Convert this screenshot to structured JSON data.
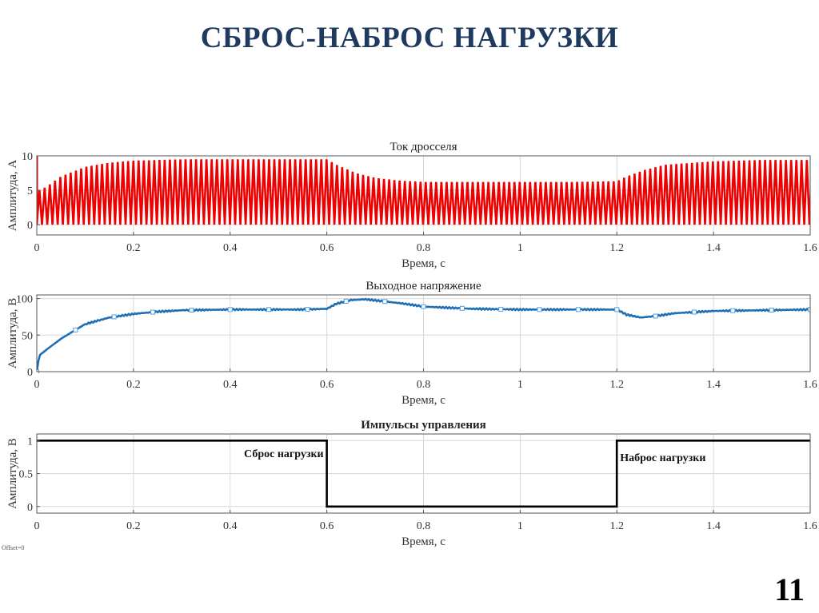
{
  "slide": {
    "title": "СБРОС-НАБРОС НАГРУЗКИ",
    "page_number": "11",
    "offset_note": "Offset=0"
  },
  "chart_data": [
    {
      "type": "line",
      "title": "Ток дросселя",
      "xlabel": "Время, с",
      "ylabel": "Амплитуда, А",
      "xlim": [
        0,
        1.6
      ],
      "ylim": [
        -1.5,
        10
      ],
      "xticks": [
        0,
        0.2,
        0.4,
        0.6,
        0.8,
        1,
        1.2,
        1.4,
        1.6
      ],
      "yticks": [
        0,
        5,
        10
      ],
      "grid": true,
      "color": "#ee0000",
      "series": [
        {
          "style": "ripple",
          "ripple_min": 0,
          "x": [
            0,
            0.004,
            0.02,
            0.05,
            0.1,
            0.15,
            0.2,
            0.3,
            0.4,
            0.5,
            0.6,
            0.62,
            0.66,
            0.7,
            0.75,
            0.8,
            0.9,
            1.0,
            1.1,
            1.2,
            1.22,
            1.26,
            1.3,
            1.4,
            1.5,
            1.6
          ],
          "y": [
            10,
            5,
            5.5,
            7,
            8.4,
            9,
            9.3,
            9.5,
            9.5,
            9.5,
            9.5,
            8.7,
            7.5,
            6.8,
            6.4,
            6.2,
            6.2,
            6.2,
            6.2,
            6.3,
            7,
            8,
            8.7,
            9.2,
            9.4,
            9.4
          ]
        }
      ]
    },
    {
      "type": "line",
      "title": "Выходное напряжение",
      "xlabel": "Время, с",
      "ylabel": "Амплитуда, В",
      "xlim": [
        0,
        1.6
      ],
      "ylim": [
        0,
        105
      ],
      "xticks": [
        0,
        0.2,
        0.4,
        0.6,
        0.8,
        1,
        1.2,
        1.4,
        1.6
      ],
      "yticks": [
        0,
        50,
        100
      ],
      "grid": true,
      "color": "#1f6fb5",
      "series": [
        {
          "style": "line-markers",
          "x": [
            0,
            0.005,
            0.02,
            0.05,
            0.1,
            0.15,
            0.2,
            0.25,
            0.3,
            0.4,
            0.5,
            0.55,
            0.6,
            0.62,
            0.65,
            0.68,
            0.72,
            0.76,
            0.8,
            0.9,
            1.0,
            1.1,
            1.2,
            1.22,
            1.25,
            1.28,
            1.32,
            1.4,
            1.5,
            1.6
          ],
          "y": [
            0,
            22,
            30,
            45,
            65,
            74,
            79,
            82,
            84,
            85,
            85,
            85,
            86,
            93,
            98,
            99,
            96,
            93,
            89,
            86,
            85,
            85,
            85,
            78,
            74,
            76,
            80,
            83,
            84,
            85
          ]
        }
      ]
    },
    {
      "type": "line",
      "title": "Импульсы управления",
      "xlabel": "Время, с",
      "ylabel": "Амплитуда, В",
      "xlim": [
        0,
        1.6
      ],
      "ylim": [
        -0.1,
        1.1
      ],
      "xticks": [
        0,
        0.2,
        0.4,
        0.6,
        0.8,
        1,
        1.2,
        1.4,
        1.6
      ],
      "yticks": [
        0,
        0.5,
        1
      ],
      "grid": true,
      "color": "#000000",
      "series": [
        {
          "style": "step",
          "x": [
            0,
            0.6,
            0.6,
            1.2,
            1.2,
            1.6
          ],
          "y": [
            1,
            1,
            0,
            0,
            1,
            1
          ]
        }
      ],
      "annotations": [
        {
          "text": "Сброс нагрузки",
          "x": 0.6,
          "y": 0.75,
          "align": "left-of"
        },
        {
          "text": "Наброс нагрузки",
          "x": 1.2,
          "y": 0.69,
          "align": "right-of"
        }
      ]
    }
  ]
}
